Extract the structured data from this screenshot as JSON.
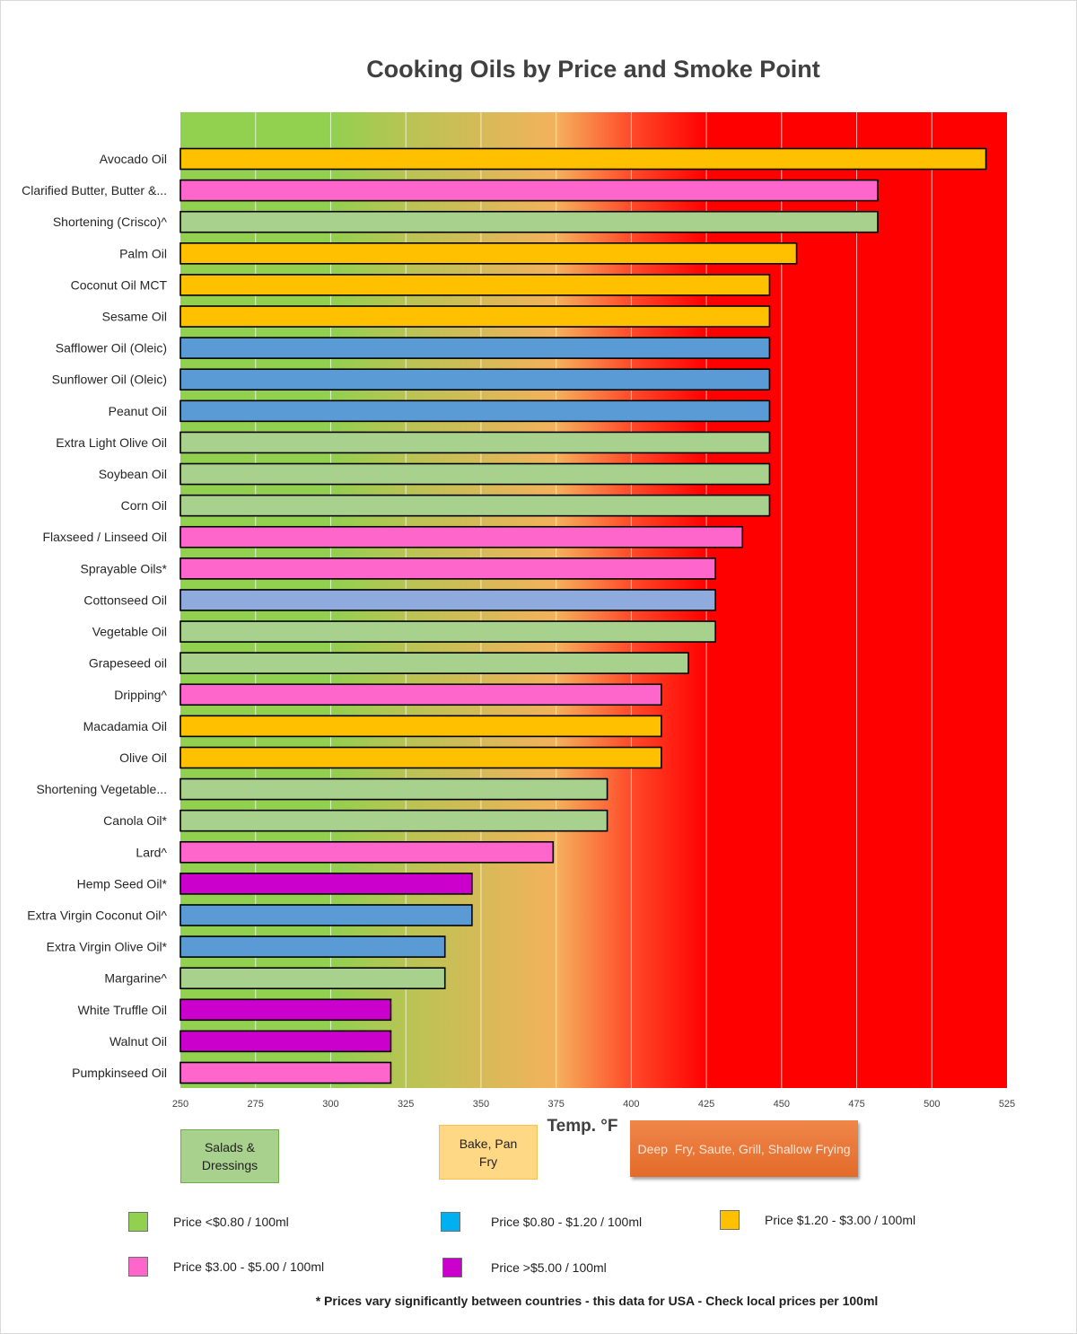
{
  "chart_data": {
    "type": "bar",
    "orientation": "horizontal",
    "title": "Cooking Oils by Price and Smoke Point",
    "xlabel": "Temp. °F",
    "ylabel": "",
    "xlim": [
      250,
      525
    ],
    "x_ticks": [
      250,
      275,
      300,
      325,
      350,
      375,
      400,
      425,
      450,
      475,
      500,
      525
    ],
    "grid": true,
    "bars": [
      {
        "label": "Avocado Oil",
        "value": 518,
        "price_color": "#ffc000"
      },
      {
        "label": "Clarified Butter, Butter &...",
        "value": 482,
        "price_color": "#ff66cc"
      },
      {
        "label": "Shortening (Crisco)^",
        "value": 482,
        "price_color": "#a9d18e"
      },
      {
        "label": "Palm Oil",
        "value": 455,
        "price_color": "#ffc000"
      },
      {
        "label": "Coconut Oil MCT",
        "value": 446,
        "price_color": "#ffc000"
      },
      {
        "label": "Sesame Oil",
        "value": 446,
        "price_color": "#ffc000"
      },
      {
        "label": "Safflower Oil (Oleic)",
        "value": 446,
        "price_color": "#5b9bd5"
      },
      {
        "label": "Sunflower Oil (Oleic)",
        "value": 446,
        "price_color": "#5b9bd5"
      },
      {
        "label": "Peanut Oil",
        "value": 446,
        "price_color": "#5b9bd5"
      },
      {
        "label": "Extra Light Olive Oil",
        "value": 446,
        "price_color": "#a9d18e"
      },
      {
        "label": "Soybean Oil",
        "value": 446,
        "price_color": "#a9d18e"
      },
      {
        "label": "Corn Oil",
        "value": 446,
        "price_color": "#a9d18e"
      },
      {
        "label": "Flaxseed / Linseed Oil",
        "value": 437,
        "price_color": "#ff66cc"
      },
      {
        "label": "Sprayable Oils*",
        "value": 428,
        "price_color": "#ff66cc"
      },
      {
        "label": "Cottonseed Oil",
        "value": 428,
        "price_color": "#8faadc"
      },
      {
        "label": "Vegetable Oil",
        "value": 428,
        "price_color": "#a9d18e"
      },
      {
        "label": "Grapeseed oil",
        "value": 419,
        "price_color": "#a9d18e"
      },
      {
        "label": "Dripping^",
        "value": 410,
        "price_color": "#ff66cc"
      },
      {
        "label": "Macadamia Oil",
        "value": 410,
        "price_color": "#ffc000"
      },
      {
        "label": "Olive Oil",
        "value": 410,
        "price_color": "#ffc000"
      },
      {
        "label": "Shortening Vegetable...",
        "value": 392,
        "price_color": "#a9d18e"
      },
      {
        "label": "Canola Oil*",
        "value": 392,
        "price_color": "#a9d18e"
      },
      {
        "label": "Lard^",
        "value": 374,
        "price_color": "#ff66cc"
      },
      {
        "label": "Hemp Seed Oil*",
        "value": 347,
        "price_color": "#cc00cc"
      },
      {
        "label": "Extra Virgin Coconut Oil^",
        "value": 347,
        "price_color": "#5b9bd5"
      },
      {
        "label": "Extra Virgin Olive Oil*",
        "value": 338,
        "price_color": "#5b9bd5"
      },
      {
        "label": "Margarine^",
        "value": 338,
        "price_color": "#a9d18e"
      },
      {
        "label": "White Truffle Oil",
        "value": 320,
        "price_color": "#cc00cc"
      },
      {
        "label": "Walnut Oil",
        "value": 320,
        "price_color": "#cc00cc"
      },
      {
        "label": "Pumpkinseed Oil",
        "value": 320,
        "price_color": "#ff66cc"
      }
    ],
    "background_gradient": {
      "stops": [
        {
          "temp": 250,
          "color": "#92d050"
        },
        {
          "temp": 300,
          "color": "#92d050"
        },
        {
          "temp": 325,
          "color": "#b8c454"
        },
        {
          "temp": 375,
          "color": "#f4b15c"
        },
        {
          "temp": 400,
          "color": "#ff4a2a"
        },
        {
          "temp": 425,
          "color": "#ff0000"
        },
        {
          "temp": 525,
          "color": "#ff0000"
        }
      ]
    }
  },
  "zones": {
    "salads": "Salads & Dressings",
    "bake": "Bake, Pan Fry",
    "fry": "Deep  Fry, Saute, Grill, Shallow Frying"
  },
  "legend": [
    {
      "label": "Price <$0.80  / 100ml",
      "color": "#92d050"
    },
    {
      "label": "Price $0.80 - $1.20  / 100ml",
      "color": "#00b0f0"
    },
    {
      "label": "Price $1.20 - $3.00  / 100ml",
      "color": "#ffc000"
    },
    {
      "label": "Price $3.00 - $5.00  / 100ml",
      "color": "#ff66cc"
    },
    {
      "label": "Price >$5.00  / 100ml",
      "color": "#cc00cc"
    }
  ],
  "footnote": "* Prices vary significantly between countries - this data for USA - Check local prices per 100ml"
}
